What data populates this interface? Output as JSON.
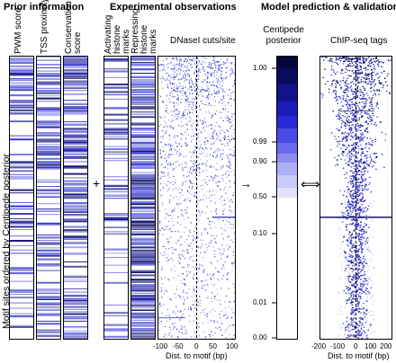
{
  "headers": {
    "prior": "Prior information",
    "experimental": "Experimental observations",
    "model": "Model prediction & validation"
  },
  "side_label": "Motif sites ordered by Centipede posterior",
  "columns": {
    "pwm": "PWM score",
    "tss": "TSS proximity",
    "conservation": "Conservation score",
    "activating": "Activating histone marks",
    "repressing": "Repressing histone marks"
  },
  "dnase_title": "DNaseI cuts/site",
  "centipede_title": "Centipede posterior",
  "chip_title": "ChIP-seq tags",
  "operators": {
    "plus": "+",
    "arrow": "→",
    "double_arrow": "⟺"
  },
  "dnase_axis": {
    "label": "Dist. to motif (bp)",
    "ticks": [
      "-100",
      "-50",
      "0",
      "50",
      "100"
    ]
  },
  "chip_axis": {
    "label": "Dist. to motif (bp)",
    "ticks": [
      "-200",
      "-100",
      "0",
      "100",
      "200"
    ]
  },
  "posterior_ticks": [
    "1.00",
    "0.99",
    "0.90",
    "0.50",
    "0.10",
    "0.01",
    "0.00"
  ],
  "colors": {
    "dark": "#0a0a5a",
    "blue": "#2a2adc",
    "light": "#d8d8ff"
  }
}
